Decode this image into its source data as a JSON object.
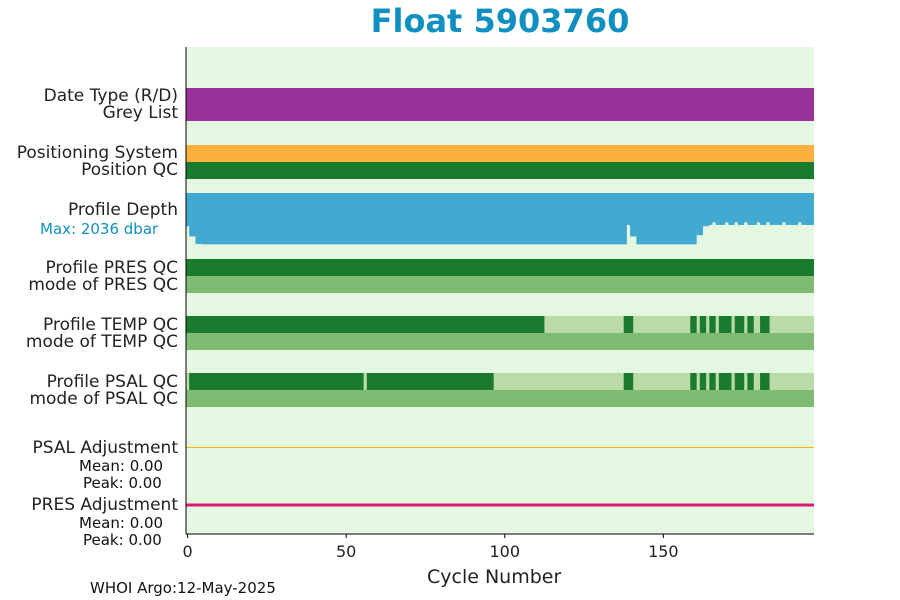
{
  "chart_data": {
    "type": "table",
    "title": "Float 5903760",
    "xlabel": "Cycle Number",
    "xlim": [
      -0.5,
      197.5
    ],
    "xticks": [
      0,
      50,
      100,
      150
    ],
    "max_cycle": 197,
    "rows": [
      {
        "label": "Date Type (R/D)",
        "color": "#993399",
        "segments": [
          [
            0,
            197
          ]
        ]
      },
      {
        "label": "Grey List",
        "color": "#993399",
        "segments": [
          [
            0,
            197
          ]
        ]
      },
      {
        "label": "Positioning System",
        "color": "#fbb040",
        "segments": [
          [
            0,
            197
          ]
        ]
      },
      {
        "label": "Position QC",
        "color": "#1a7a2e",
        "segments": [
          [
            0,
            197
          ]
        ]
      },
      {
        "label": "Profile Depth",
        "color": "#42a9d1",
        "max_label": "Max: 2036 dbar",
        "max_depth": 2036
      },
      {
        "label": "Profile PRES QC",
        "color": "#1a7a2e",
        "segments": [
          [
            0,
            197
          ]
        ]
      },
      {
        "label": "mode of PRES QC",
        "color": "#7fbb72",
        "segments": [
          [
            0,
            197
          ]
        ]
      },
      {
        "label": "Profile TEMP QC",
        "good_color": "#1a7a2e",
        "mixed_color": "#badba7",
        "good_segments": [
          [
            0,
            112
          ],
          [
            138,
            140
          ],
          [
            159,
            160
          ],
          [
            162,
            163
          ],
          [
            165,
            166
          ],
          [
            168,
            171
          ],
          [
            173,
            175
          ],
          [
            177,
            178
          ],
          [
            181,
            183
          ]
        ]
      },
      {
        "label": "mode of TEMP QC",
        "color": "#7fbb72",
        "segments": [
          [
            0,
            197
          ]
        ]
      },
      {
        "label": "Profile PSAL QC",
        "good_color": "#1a7a2e",
        "mixed_color": "#badba7",
        "good_segments": [
          [
            1,
            55
          ],
          [
            57,
            96
          ],
          [
            138,
            140
          ],
          [
            159,
            160
          ],
          [
            162,
            163
          ],
          [
            165,
            166
          ],
          [
            168,
            171
          ],
          [
            173,
            175
          ],
          [
            177,
            178
          ],
          [
            181,
            183
          ]
        ]
      },
      {
        "label": "mode of PSAL QC",
        "color": "#7fbb72",
        "segments": [
          [
            0,
            197
          ]
        ]
      },
      {
        "label": "PSAL Adjustment",
        "color": "#f5b400",
        "mean": "Mean: 0.00",
        "peak": "Peak: 0.00"
      },
      {
        "label": "PRES Adjustment",
        "color": "#e0177a",
        "mean": "Mean: 0.00",
        "peak": "Peak: 0.00"
      }
    ],
    "depth_profile": [
      {
        "from": 0,
        "to": 1,
        "depth": 1300
      },
      {
        "from": 1,
        "to": 3,
        "depth": 1700
      },
      {
        "from": 3,
        "to": 5,
        "depth": 2000
      },
      {
        "from": 5,
        "to": 138,
        "depth": 2010
      },
      {
        "from": 138,
        "to": 140,
        "depth": 1250
      },
      {
        "from": 140,
        "to": 142,
        "depth": 1700
      },
      {
        "from": 142,
        "to": 160,
        "depth": 2010
      },
      {
        "from": 160,
        "to": 162,
        "depth": 1650
      },
      {
        "from": 162,
        "to": 164,
        "depth": 1300
      },
      {
        "from": 164,
        "to": 197,
        "depth": 1250
      }
    ],
    "background": "#e4f7e1"
  },
  "footer": {
    "text": "WHOI Argo:12-May-2025"
  }
}
